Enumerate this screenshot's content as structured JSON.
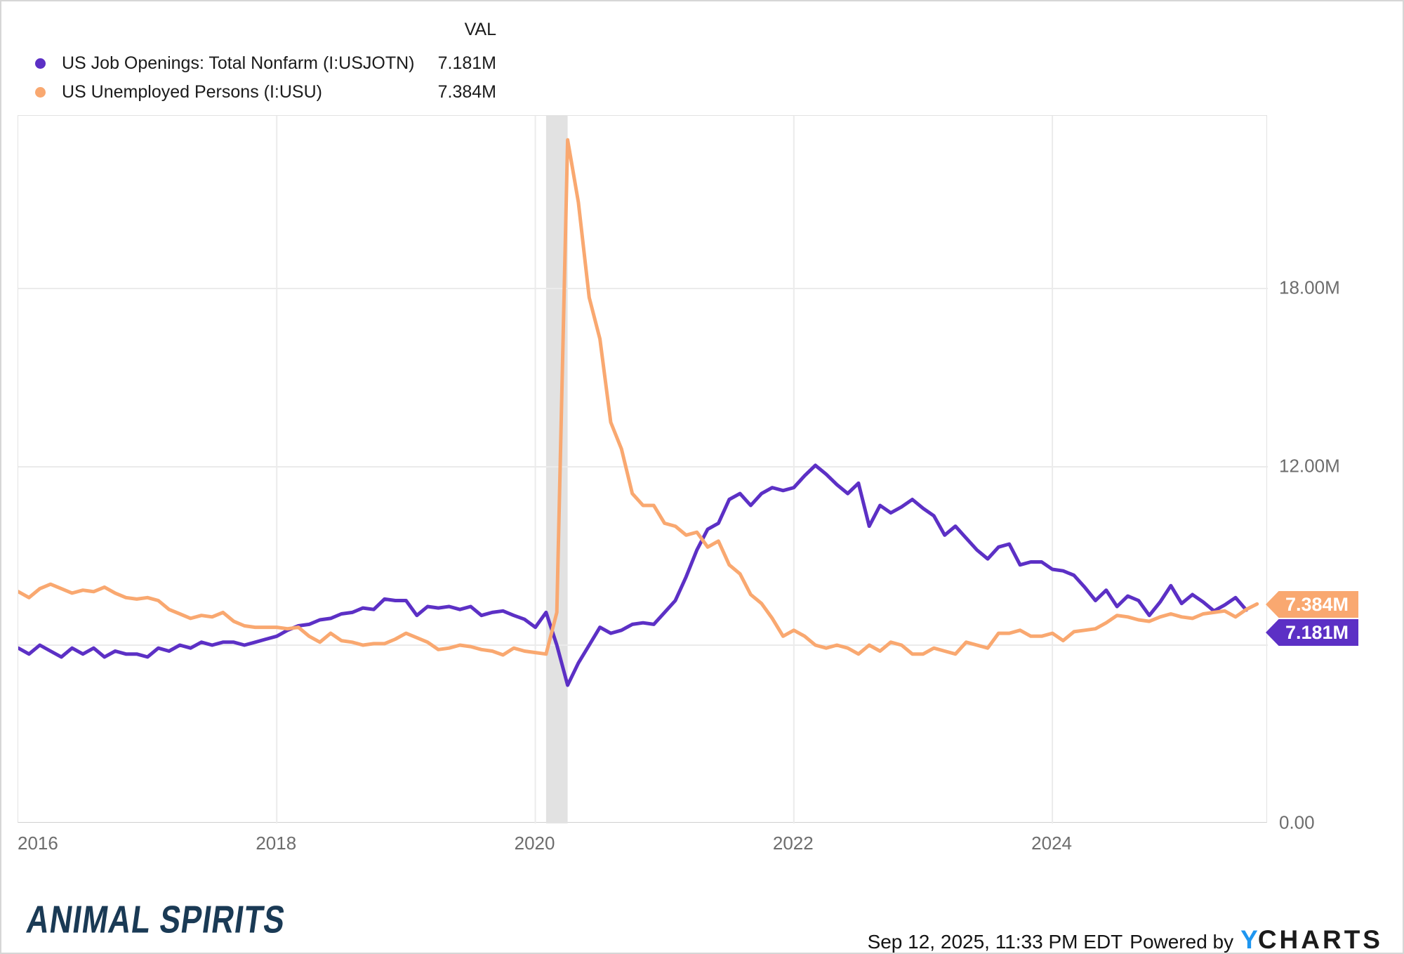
{
  "legend": {
    "val_header": "VAL",
    "rows": [
      {
        "label": "US Job Openings: Total Nonfarm (I:USJOTN)",
        "value": "7.181M",
        "color": "#5c30c5"
      },
      {
        "label": "US Unemployed Persons (I:USU)",
        "value": "7.384M",
        "color": "#f9a870"
      }
    ]
  },
  "chart_data": {
    "type": "line",
    "title": "",
    "x_axis": {
      "start": "2016-01",
      "end": "2025-09",
      "total_months": 116,
      "ticks": [
        {
          "label": "2016",
          "month": 0,
          "align": "left"
        },
        {
          "label": "2018",
          "month": 24
        },
        {
          "label": "2020",
          "month": 48
        },
        {
          "label": "2022",
          "month": 72
        },
        {
          "label": "2024",
          "month": 96
        }
      ]
    },
    "y_axis": {
      "unit": "millions",
      "max": 23.81,
      "min": 0,
      "gridlines": [
        6,
        12,
        18
      ],
      "ticks": [
        {
          "label": "18.00M",
          "value": 18
        },
        {
          "label": "12.00M",
          "value": 12
        },
        {
          "label": "0.00",
          "value": 0
        }
      ]
    },
    "recession_band": {
      "from_month": 49,
      "to_month": 51,
      "color": "#e2e2e2"
    },
    "grid_color": "#ebebeb",
    "series": [
      {
        "name": "US Job Openings: Total Nonfarm",
        "id": "I:USJOTN",
        "color": "#5c30c5",
        "last_value": "7.181M",
        "values": [
          5.9,
          5.7,
          6.0,
          5.8,
          5.6,
          5.9,
          5.7,
          5.9,
          5.6,
          5.8,
          5.7,
          5.7,
          5.6,
          5.9,
          5.8,
          6.0,
          5.9,
          6.1,
          6.0,
          6.1,
          6.1,
          6.0,
          6.1,
          6.2,
          6.3,
          6.5,
          6.65,
          6.7,
          6.85,
          6.9,
          7.05,
          7.1,
          7.25,
          7.2,
          7.55,
          7.5,
          7.5,
          7.0,
          7.3,
          7.25,
          7.3,
          7.2,
          7.3,
          7.0,
          7.1,
          7.15,
          7.0,
          6.87,
          6.6,
          7.1,
          6.0,
          4.65,
          5.4,
          6.0,
          6.6,
          6.4,
          6.5,
          6.7,
          6.75,
          6.7,
          7.1,
          7.5,
          8.3,
          9.2,
          9.9,
          10.1,
          10.9,
          11.1,
          10.7,
          11.1,
          11.3,
          11.2,
          11.3,
          11.7,
          12.05,
          11.75,
          11.4,
          11.1,
          11.45,
          10.0,
          10.7,
          10.45,
          10.65,
          10.9,
          10.6,
          10.35,
          9.7,
          10.0,
          9.6,
          9.2,
          8.9,
          9.3,
          9.4,
          8.7,
          8.8,
          8.8,
          8.55,
          8.5,
          8.35,
          7.95,
          7.5,
          7.85,
          7.3,
          7.65,
          7.5,
          7.0,
          7.45,
          8.0,
          7.4,
          7.7,
          7.45,
          7.15,
          7.35,
          7.6,
          7.181
        ]
      },
      {
        "name": "US Unemployed Persons",
        "id": "I:USU",
        "color": "#f9a870",
        "last_value": "7.384M",
        "values": [
          7.8,
          7.6,
          7.9,
          8.05,
          7.9,
          7.75,
          7.85,
          7.8,
          7.95,
          7.75,
          7.6,
          7.55,
          7.6,
          7.5,
          7.2,
          7.05,
          6.9,
          7.0,
          6.95,
          7.1,
          6.8,
          6.65,
          6.6,
          6.6,
          6.6,
          6.55,
          6.6,
          6.3,
          6.1,
          6.4,
          6.15,
          6.1,
          6.0,
          6.05,
          6.05,
          6.2,
          6.4,
          6.25,
          6.1,
          5.85,
          5.9,
          6.0,
          5.95,
          5.85,
          5.8,
          5.67,
          5.9,
          5.8,
          5.75,
          5.7,
          7.1,
          23.0,
          20.9,
          17.7,
          16.3,
          13.5,
          12.6,
          11.1,
          10.7,
          10.7,
          10.1,
          10.0,
          9.7,
          9.8,
          9.3,
          9.5,
          8.7,
          8.4,
          7.7,
          7.4,
          6.9,
          6.3,
          6.5,
          6.3,
          6.0,
          5.9,
          6.0,
          5.9,
          5.7,
          6.0,
          5.8,
          6.1,
          6.0,
          5.7,
          5.7,
          5.9,
          5.8,
          5.7,
          6.1,
          6.0,
          5.9,
          6.4,
          6.4,
          6.5,
          6.3,
          6.3,
          6.4,
          6.15,
          6.45,
          6.5,
          6.55,
          6.75,
          7.0,
          6.95,
          6.85,
          6.8,
          6.95,
          7.05,
          6.95,
          6.9,
          7.05,
          7.1,
          7.15,
          6.95,
          7.2,
          7.384
        ]
      }
    ],
    "end_labels": [
      {
        "text": "7.384M",
        "color": "#f9a870"
      },
      {
        "text": "7.181M",
        "color": "#5c30c5"
      }
    ]
  },
  "footer": {
    "brand": "ANIMAL SPIRITS",
    "timestamp": "Sep 12, 2025, 11:33 PM EDT",
    "powered_by": "Powered by",
    "ycharts_y": "Y",
    "ycharts_rest": "CHARTS"
  }
}
